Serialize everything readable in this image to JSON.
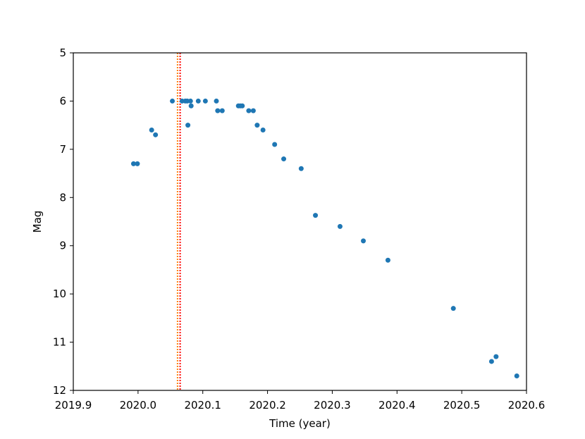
{
  "chart_data": {
    "type": "scatter",
    "title": "",
    "xlabel": "Time (year)",
    "ylabel": "Mag",
    "xlim": [
      2019.9,
      2020.6
    ],
    "ylim": [
      12,
      5
    ],
    "y_inverted": true,
    "grid": false,
    "x_ticks": [
      "2019.9",
      "2020.0",
      "2020.1",
      "2020.2",
      "2020.3",
      "2020.4",
      "2020.5",
      "2020.6"
    ],
    "x_tick_values": [
      2019.9,
      2020.0,
      2020.1,
      2020.2,
      2020.3,
      2020.4,
      2020.5,
      2020.6
    ],
    "y_ticks": [
      "5",
      "6",
      "7",
      "8",
      "9",
      "10",
      "11",
      "12"
    ],
    "y_tick_values": [
      5,
      6,
      7,
      8,
      9,
      10,
      11,
      12
    ],
    "series": [
      {
        "color": "#1f77b4",
        "points": [
          {
            "x": 2019.993,
            "y": 7.3
          },
          {
            "x": 2019.999,
            "y": 7.3
          },
          {
            "x": 2020.021,
            "y": 6.6
          },
          {
            "x": 2020.027,
            "y": 6.7
          },
          {
            "x": 2020.053,
            "y": 6.0
          },
          {
            "x": 2020.068,
            "y": 6.0
          },
          {
            "x": 2020.073,
            "y": 6.0
          },
          {
            "x": 2020.076,
            "y": 6.0
          },
          {
            "x": 2020.077,
            "y": 6.5
          },
          {
            "x": 2020.081,
            "y": 6.0
          },
          {
            "x": 2020.082,
            "y": 6.1
          },
          {
            "x": 2020.093,
            "y": 6.0
          },
          {
            "x": 2020.104,
            "y": 6.0
          },
          {
            "x": 2020.121,
            "y": 6.0
          },
          {
            "x": 2020.123,
            "y": 6.2
          },
          {
            "x": 2020.13,
            "y": 6.2
          },
          {
            "x": 2020.155,
            "y": 6.1
          },
          {
            "x": 2020.158,
            "y": 6.1
          },
          {
            "x": 2020.161,
            "y": 6.1
          },
          {
            "x": 2020.171,
            "y": 6.2
          },
          {
            "x": 2020.178,
            "y": 6.2
          },
          {
            "x": 2020.184,
            "y": 6.5
          },
          {
            "x": 2020.193,
            "y": 6.6
          },
          {
            "x": 2020.211,
            "y": 6.9
          },
          {
            "x": 2020.225,
            "y": 7.2
          },
          {
            "x": 2020.252,
            "y": 7.4
          },
          {
            "x": 2020.274,
            "y": 8.37
          },
          {
            "x": 2020.312,
            "y": 8.6
          },
          {
            "x": 2020.348,
            "y": 8.9
          },
          {
            "x": 2020.386,
            "y": 9.3
          },
          {
            "x": 2020.487,
            "y": 10.3
          },
          {
            "x": 2020.546,
            "y": 11.4
          },
          {
            "x": 2020.553,
            "y": 11.3
          },
          {
            "x": 2020.585,
            "y": 11.7
          }
        ]
      }
    ],
    "vlines": [
      {
        "x": 2020.061,
        "color": "#ff7f0e",
        "style": "dotted"
      },
      {
        "x": 2020.065,
        "color": "#ff0000",
        "style": "dotted"
      }
    ]
  }
}
